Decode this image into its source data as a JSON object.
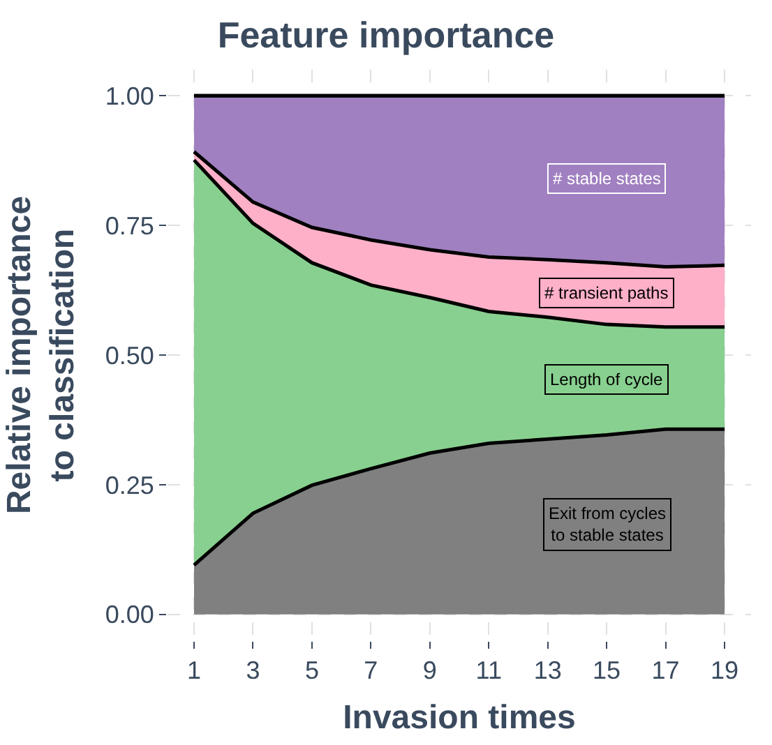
{
  "chart_data": {
    "type": "area",
    "stacked": true,
    "title": "Feature importance",
    "xlabel": "Invasion times",
    "ylabel": "Relative importance\nto classification",
    "x": [
      1,
      3,
      5,
      7,
      9,
      11,
      13,
      15,
      17,
      19
    ],
    "series": [
      {
        "name": "Exit from cycles\nto stable states",
        "color": "#808080",
        "values": [
          0.095,
          0.195,
          0.249,
          0.281,
          0.311,
          0.33,
          0.338,
          0.346,
          0.357,
          0.357
        ]
      },
      {
        "name": "Length of cycle",
        "color": "#88d08f",
        "values": [
          0.781,
          0.559,
          0.429,
          0.354,
          0.3,
          0.254,
          0.235,
          0.213,
          0.197,
          0.197
        ]
      },
      {
        "name": "# transient paths",
        "color": "#ffb0c9",
        "values": [
          0.016,
          0.041,
          0.068,
          0.087,
          0.092,
          0.105,
          0.111,
          0.119,
          0.116,
          0.119
        ]
      },
      {
        "name": "# stable states",
        "color": "#a080c0",
        "values": [
          0.108,
          0.205,
          0.254,
          0.278,
          0.297,
          0.311,
          0.316,
          0.322,
          0.33,
          0.327
        ]
      }
    ],
    "xlim": [
      0.1,
      19.9
    ],
    "xticks": [
      1,
      3,
      5,
      7,
      9,
      11,
      13,
      15,
      17,
      19
    ],
    "ylim": [
      -0.05,
      1.05
    ],
    "yticks": [
      {
        "value": 0,
        "label": "0.00"
      },
      {
        "value": 0.25,
        "label": "0.25"
      },
      {
        "value": 0.5,
        "label": "0.50"
      },
      {
        "value": 0.75,
        "label": "0.75"
      },
      {
        "value": 1,
        "label": "1.00"
      }
    ],
    "grid": true,
    "legend": false
  }
}
